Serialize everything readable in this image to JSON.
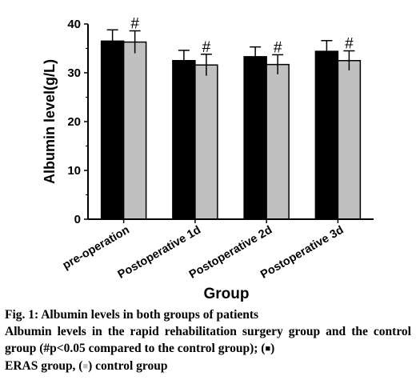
{
  "chart_data": {
    "type": "bar",
    "categories": [
      "pre-operation",
      "Postoperative 1d",
      "Postoperative 2d",
      "Postoperative 3d"
    ],
    "series": [
      {
        "values": [
          36.5,
          32.5,
          33.3,
          34.4
        ],
        "errors": [
          2.3,
          2.1,
          2.0,
          2.2
        ],
        "color": "#000000"
      },
      {
        "values": [
          36.3,
          31.6,
          31.7,
          32.5
        ],
        "errors": [
          2.3,
          2.2,
          2.0,
          2.0
        ],
        "color": "#c0c0c0"
      }
    ],
    "significance_marker": "#",
    "xlabel": "Group",
    "ylabel": "Albumin level(g/L)",
    "ylim": [
      0,
      40
    ],
    "yticks": [
      "0",
      "10",
      "20",
      "30",
      "40"
    ],
    "grid": false
  },
  "caption": {
    "title": "Fig. 1: Albumin levels in both groups of patients",
    "body_text": "Albumin levels in the rapid rehabilitation surgery group and the control group (#p<0.05 compared to the control group); (",
    "marker_black": "■",
    "text_mid": ")",
    "legend_eras": "ERAS group, (",
    "marker_gray": "■",
    "legend_control": ") control group"
  }
}
